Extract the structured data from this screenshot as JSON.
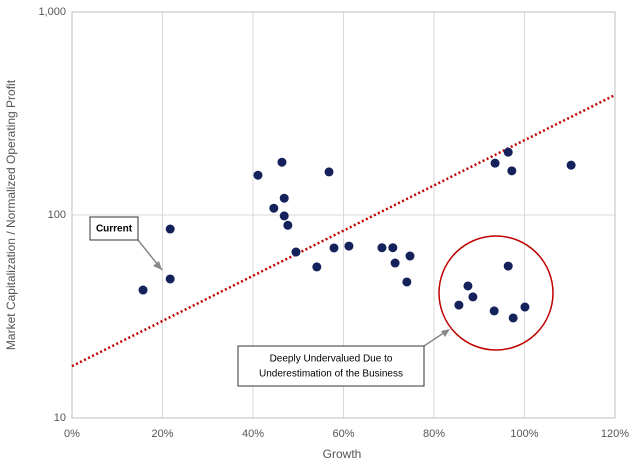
{
  "chart_data": {
    "type": "scatter",
    "x_label": "Growth",
    "y_label": "Market Capitalization / Normalized Operating Profit",
    "x": [
      15.7,
      21.7,
      21.7,
      41.1,
      46.4,
      44.6,
      46.9,
      46.9,
      47.7,
      49.5,
      56.8,
      54.1,
      57.9,
      61.2,
      68.5,
      70.9,
      71.4,
      74.7,
      74.0,
      93.5,
      96.4,
      97.2,
      110.3,
      87.5,
      85.5,
      88.6,
      96.4,
      93.3,
      97.5,
      100.1
    ],
    "values": [
      42.7,
      48.4,
      85.3,
      157,
      182,
      108,
      121,
      99,
      89,
      65.7,
      163,
      55.5,
      68.8,
      70.3,
      69,
      69,
      58,
      62.8,
      46.8,
      180,
      204,
      165,
      176,
      44.7,
      36,
      39.5,
      56,
      33.7,
      31.1,
      35.2
    ],
    "color": "#14215a",
    "trend": {
      "x": [
        0,
        120
      ],
      "values": [
        18,
        390
      ],
      "color": "#c00000"
    },
    "xlim": [
      0,
      120
    ],
    "xticks": [
      {
        "value": 0,
        "label": "0%"
      },
      {
        "value": 20,
        "label": "20%"
      },
      {
        "value": 40,
        "label": "40%"
      },
      {
        "value": 60,
        "label": "60%"
      },
      {
        "value": 80,
        "label": "80%"
      },
      {
        "value": 100,
        "label": "100%"
      },
      {
        "value": 120,
        "label": "120%"
      }
    ],
    "ylim": [
      10,
      1000
    ],
    "yticks": [
      10,
      100,
      {
        "value": 1000,
        "label": "1,000"
      }
    ],
    "y_scale": "log",
    "grid": true,
    "annotations": [
      {
        "lines": [
          "Current"
        ]
      },
      {
        "lines": [
          "Deeply Undervalued Due to",
          "Underestimation of the Business"
        ]
      }
    ]
  }
}
